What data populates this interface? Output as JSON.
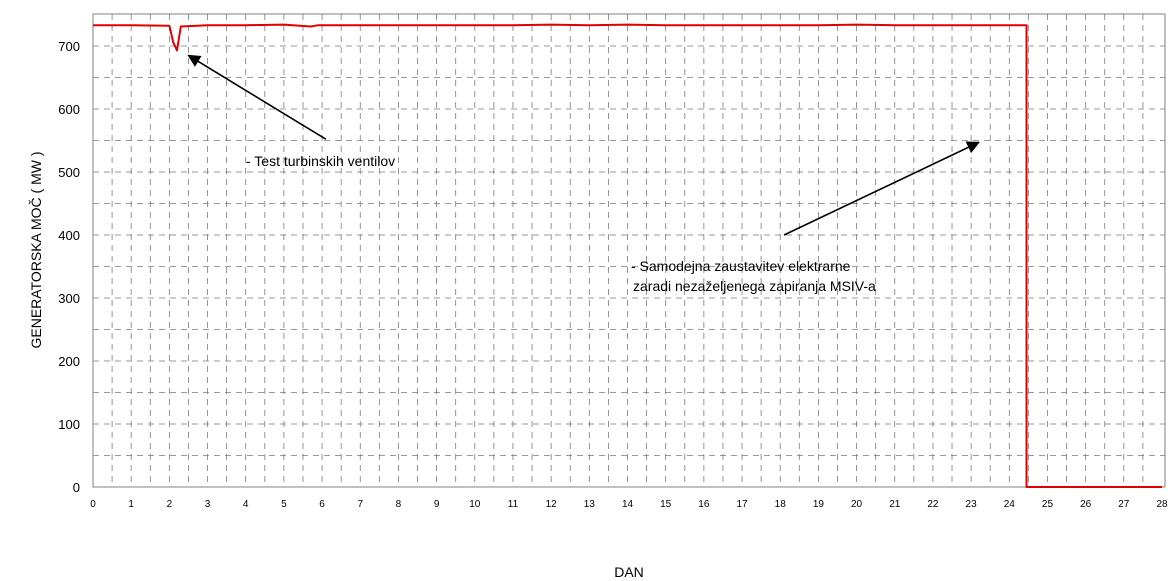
{
  "chart_data": {
    "type": "line",
    "title": "",
    "xlabel": "DAN",
    "ylabel": "GENERATORSKA MOČ  ( MW )",
    "xlim": [
      0,
      28
    ],
    "ylim": [
      0,
      730
    ],
    "x_ticks": [
      0,
      1,
      2,
      3,
      4,
      5,
      6,
      7,
      8,
      9,
      10,
      11,
      12,
      13,
      14,
      15,
      16,
      17,
      18,
      19,
      20,
      21,
      22,
      23,
      24,
      25,
      26,
      27,
      28
    ],
    "y_ticks": [
      0,
      100,
      200,
      300,
      400,
      500,
      600,
      700
    ],
    "grid": "dashed, vertical every 0.5 day, horizontal every 50 MW",
    "line_color": "#e00000",
    "series": [
      {
        "x": [
          0,
          1,
          2.0,
          2.1,
          2.2,
          2.3,
          3,
          4,
          5,
          5.7,
          5.9,
          6,
          7,
          8,
          9,
          10,
          11,
          12,
          13,
          14,
          15,
          16,
          17,
          18,
          19,
          20,
          21,
          22,
          23,
          24,
          24.45,
          24.45,
          24.6,
          28
        ],
        "y": [
          733,
          733,
          732,
          706,
          693,
          731,
          733,
          733,
          734,
          731,
          733,
          733,
          733,
          733,
          733,
          733,
          733,
          734,
          733,
          734,
          733,
          733,
          733,
          733,
          733,
          734,
          733,
          733,
          733,
          733,
          733,
          0,
          0,
          0
        ]
      }
    ],
    "annotations": [
      {
        "text": "- Test turbinskih ventilov",
        "arrow_from": [
          6.1,
          552
        ],
        "arrow_to": [
          2.5,
          685
        ]
      },
      {
        "lines": [
          "- Samodejna zaustavitev elektrarne",
          "zaradi nezaželjenega zapiranja MSIV-a"
        ],
        "arrow_from": [
          18.1,
          400
        ],
        "arrow_to": [
          23.2,
          547
        ]
      }
    ]
  }
}
